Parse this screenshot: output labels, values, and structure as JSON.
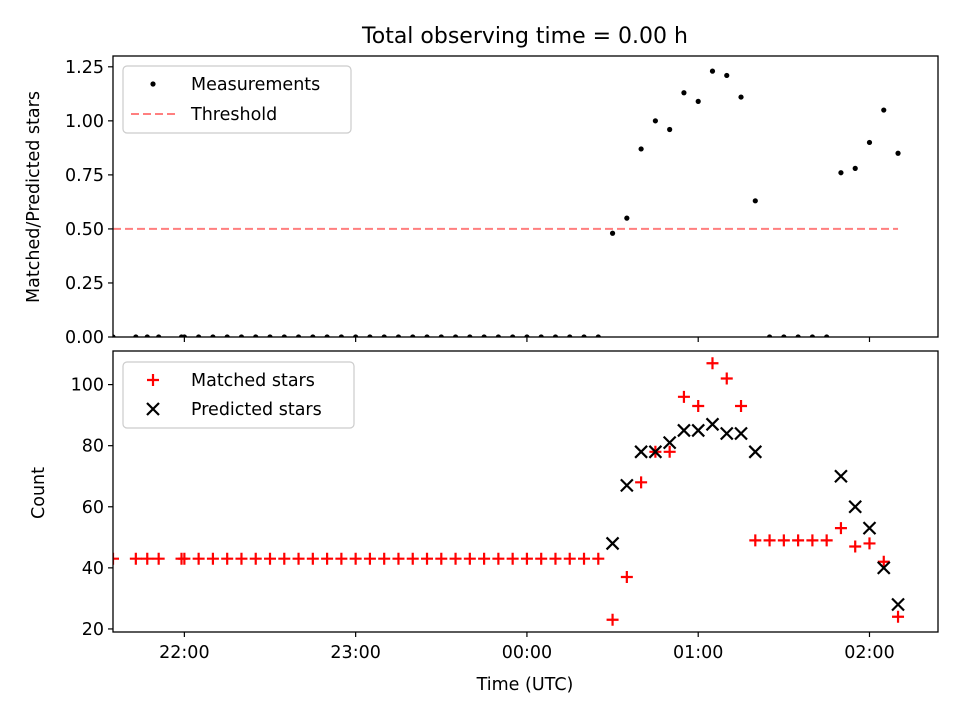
{
  "title": "Total observing time = 0.00 h",
  "colors": {
    "threshold": "#ff7f7f",
    "measurement": "#000000",
    "matched": "#ff0000",
    "predicted": "#000000"
  },
  "chart_data": [
    {
      "type": "scatter",
      "ylabel": "Matched/Predicted stars",
      "xlim": [
        "21:35",
        "02:24"
      ],
      "ylim": [
        0,
        1.3
      ],
      "yticks": [
        "0.00",
        "0.25",
        "0.50",
        "0.75",
        "1.00",
        "1.25"
      ],
      "xtick_positions": [
        "22:00",
        "23:00",
        "00:00",
        "01:00",
        "02:00"
      ],
      "legend": {
        "position": "top-left",
        "entries": [
          "Measurements",
          "Threshold"
        ]
      },
      "series": [
        {
          "name": "Measurements",
          "marker": "dot",
          "points": [
            [
              "21:35",
              0
            ],
            [
              "21:43",
              0
            ],
            [
              "21:47",
              0
            ],
            [
              "21:51",
              0
            ],
            [
              "21:59",
              0
            ],
            [
              "22:00",
              0
            ],
            [
              "22:05",
              0
            ],
            [
              "22:10",
              0
            ],
            [
              "22:15",
              0
            ],
            [
              "22:20",
              0
            ],
            [
              "22:25",
              0
            ],
            [
              "22:30",
              0
            ],
            [
              "22:35",
              0
            ],
            [
              "22:40",
              0
            ],
            [
              "22:45",
              0
            ],
            [
              "22:50",
              0
            ],
            [
              "22:55",
              0
            ],
            [
              "23:00",
              0
            ],
            [
              "23:05",
              0
            ],
            [
              "23:10",
              0
            ],
            [
              "23:15",
              0
            ],
            [
              "23:20",
              0
            ],
            [
              "23:25",
              0
            ],
            [
              "23:30",
              0
            ],
            [
              "23:35",
              0
            ],
            [
              "23:40",
              0
            ],
            [
              "23:45",
              0
            ],
            [
              "23:50",
              0
            ],
            [
              "23:55",
              0
            ],
            [
              "00:00",
              0
            ],
            [
              "00:05",
              0
            ],
            [
              "00:10",
              0
            ],
            [
              "00:15",
              0
            ],
            [
              "00:20",
              0
            ],
            [
              "00:25",
              0
            ],
            [
              "00:30",
              0.48
            ],
            [
              "00:35",
              0.55
            ],
            [
              "00:40",
              0.87
            ],
            [
              "00:45",
              1.0
            ],
            [
              "00:50",
              0.96
            ],
            [
              "00:55",
              1.13
            ],
            [
              "01:00",
              1.09
            ],
            [
              "01:05",
              1.23
            ],
            [
              "01:10",
              1.21
            ],
            [
              "01:15",
              1.11
            ],
            [
              "01:20",
              0.63
            ],
            [
              "01:25",
              0
            ],
            [
              "01:30",
              0
            ],
            [
              "01:35",
              0
            ],
            [
              "01:40",
              0
            ],
            [
              "01:45",
              0
            ],
            [
              "01:50",
              0.76
            ],
            [
              "01:55",
              0.78
            ],
            [
              "02:00",
              0.9
            ],
            [
              "02:05",
              1.05
            ],
            [
              "02:10",
              0.85
            ]
          ]
        },
        {
          "name": "Threshold",
          "type": "line",
          "style": "dashed",
          "x": [
            "21:35",
            "02:10"
          ],
          "y": [
            0.5,
            0.5
          ]
        }
      ]
    },
    {
      "type": "scatter",
      "xlabel": "Time (UTC)",
      "ylabel": "Count",
      "xlim": [
        "21:35",
        "02:24"
      ],
      "ylim": [
        19,
        111
      ],
      "yticks": [
        "20",
        "40",
        "60",
        "80",
        "100"
      ],
      "xticks": [
        "22:00",
        "23:00",
        "00:00",
        "01:00",
        "02:00"
      ],
      "legend": {
        "position": "top-left",
        "entries": [
          "Matched stars",
          "Predicted stars"
        ]
      },
      "series": [
        {
          "name": "Matched stars",
          "marker": "plus",
          "points": [
            [
              "21:35",
              43
            ],
            [
              "21:43",
              43
            ],
            [
              "21:47",
              43
            ],
            [
              "21:51",
              43
            ],
            [
              "21:59",
              43
            ],
            [
              "22:00",
              43
            ],
            [
              "22:05",
              43
            ],
            [
              "22:10",
              43
            ],
            [
              "22:15",
              43
            ],
            [
              "22:20",
              43
            ],
            [
              "22:25",
              43
            ],
            [
              "22:30",
              43
            ],
            [
              "22:35",
              43
            ],
            [
              "22:40",
              43
            ],
            [
              "22:45",
              43
            ],
            [
              "22:50",
              43
            ],
            [
              "22:55",
              43
            ],
            [
              "23:00",
              43
            ],
            [
              "23:05",
              43
            ],
            [
              "23:10",
              43
            ],
            [
              "23:15",
              43
            ],
            [
              "23:20",
              43
            ],
            [
              "23:25",
              43
            ],
            [
              "23:30",
              43
            ],
            [
              "23:35",
              43
            ],
            [
              "23:40",
              43
            ],
            [
              "23:45",
              43
            ],
            [
              "23:50",
              43
            ],
            [
              "23:55",
              43
            ],
            [
              "00:00",
              43
            ],
            [
              "00:05",
              43
            ],
            [
              "00:10",
              43
            ],
            [
              "00:15",
              43
            ],
            [
              "00:20",
              43
            ],
            [
              "00:25",
              43
            ],
            [
              "00:30",
              23
            ],
            [
              "00:35",
              37
            ],
            [
              "00:40",
              68
            ],
            [
              "00:45",
              78
            ],
            [
              "00:50",
              78
            ],
            [
              "00:55",
              96
            ],
            [
              "01:00",
              93
            ],
            [
              "01:05",
              107
            ],
            [
              "01:10",
              102
            ],
            [
              "01:15",
              93
            ],
            [
              "01:20",
              49
            ],
            [
              "01:25",
              49
            ],
            [
              "01:30",
              49
            ],
            [
              "01:35",
              49
            ],
            [
              "01:40",
              49
            ],
            [
              "01:45",
              49
            ],
            [
              "01:50",
              53
            ],
            [
              "01:55",
              47
            ],
            [
              "02:00",
              48
            ],
            [
              "02:05",
              42
            ],
            [
              "02:10",
              24
            ]
          ]
        },
        {
          "name": "Predicted stars",
          "marker": "x",
          "points": [
            [
              "00:30",
              48
            ],
            [
              "00:35",
              67
            ],
            [
              "00:40",
              78
            ],
            [
              "00:45",
              78
            ],
            [
              "00:50",
              81
            ],
            [
              "00:55",
              85
            ],
            [
              "01:00",
              85
            ],
            [
              "01:05",
              87
            ],
            [
              "01:10",
              84
            ],
            [
              "01:15",
              84
            ],
            [
              "01:20",
              78
            ],
            [
              "01:50",
              70
            ],
            [
              "01:55",
              60
            ],
            [
              "02:00",
              53
            ],
            [
              "02:05",
              40
            ],
            [
              "02:10",
              28
            ]
          ]
        }
      ]
    }
  ]
}
